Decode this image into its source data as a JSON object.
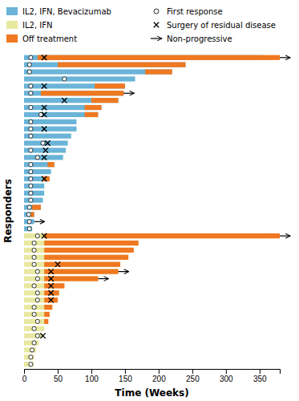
{
  "chart_data": {
    "type": "bar",
    "orientation": "horizontal",
    "xlabel": "Time (Weeks)",
    "ylabel": "Responders",
    "categories": [
      null,
      null,
      null,
      null,
      null,
      null,
      null,
      null,
      null,
      null,
      null,
      null,
      null,
      null,
      null,
      null,
      null,
      null,
      null,
      null,
      null,
      null,
      null,
      null,
      null,
      null,
      null,
      null,
      null,
      null,
      null,
      null,
      null,
      null,
      null,
      null,
      null,
      null,
      null,
      null,
      null,
      null,
      null,
      null
    ],
    "xlim": [
      0,
      380
    ],
    "xticks": [
      0,
      50,
      100,
      150,
      200,
      250,
      300,
      350
    ],
    "tick_labels": "x",
    "grid": false,
    "legend": "top",
    "series": [
      {
        "name": "IL2, IFN, Bevacizumab",
        "color": "#6ab4d8",
        "type": "bar",
        "values": [
          355,
          240,
          220,
          165,
          150,
          148,
          140,
          115,
          110,
          78,
          78,
          70,
          65,
          62,
          58,
          45,
          40,
          38,
          30,
          30,
          28,
          25,
          15,
          15,
          12,
          null,
          null,
          null,
          null,
          null,
          null,
          null,
          null,
          null,
          null,
          null,
          null,
          null,
          null,
          null,
          null,
          null,
          null,
          null
        ]
      },
      {
        "name": "IL2, IFN",
        "color": "#e8e8a0",
        "type": "bar",
        "values": [
          null,
          null,
          null,
          null,
          null,
          null,
          null,
          null,
          null,
          null,
          null,
          null,
          null,
          null,
          null,
          null,
          null,
          null,
          null,
          null,
          null,
          null,
          null,
          null,
          null,
          365,
          170,
          163,
          155,
          143,
          140,
          110,
          60,
          52,
          50,
          42,
          38,
          36,
          30,
          28,
          22,
          18,
          15,
          14
        ]
      },
      {
        "name": "Off treatment",
        "color": "#f07820",
        "type": "bar",
        "starts": [
          20,
          50,
          180,
          null,
          105,
          25,
          100,
          90,
          90,
          null,
          null,
          null,
          null,
          null,
          null,
          35,
          null,
          28,
          null,
          null,
          null,
          12,
          10,
          null,
          null,
          30,
          30,
          30,
          30,
          30,
          30,
          30,
          30,
          30,
          30,
          30,
          30,
          30,
          null,
          null,
          null,
          null,
          null,
          null
        ],
        "values": [
          380,
          240,
          220,
          null,
          150,
          148,
          140,
          115,
          110,
          null,
          null,
          null,
          null,
          null,
          null,
          45,
          null,
          38,
          null,
          null,
          null,
          25,
          15,
          null,
          null,
          380,
          170,
          163,
          155,
          143,
          140,
          110,
          60,
          52,
          50,
          42,
          38,
          36,
          null,
          null,
          null,
          null,
          null,
          null
        ]
      },
      {
        "name": "First response",
        "type": "scatter",
        "marker": "circle",
        "values": [
          10,
          8,
          8,
          60,
          10,
          10,
          null,
          10,
          25,
          10,
          10,
          10,
          28,
          10,
          20,
          10,
          10,
          10,
          10,
          10,
          10,
          8,
          7,
          8,
          8,
          20,
          15,
          15,
          15,
          15,
          20,
          20,
          15,
          20,
          20,
          15,
          15,
          20,
          15,
          20,
          15,
          12,
          10,
          10
        ]
      },
      {
        "name": "Surgery of residual disease",
        "type": "scatter",
        "marker": "x",
        "values": [
          30,
          null,
          null,
          null,
          30,
          null,
          60,
          30,
          30,
          null,
          30,
          null,
          35,
          32,
          30,
          null,
          null,
          30,
          null,
          null,
          null,
          null,
          null,
          null,
          null,
          30,
          null,
          null,
          null,
          50,
          40,
          40,
          40,
          40,
          40,
          null,
          null,
          null,
          null,
          28,
          null,
          null,
          null,
          null
        ]
      },
      {
        "name": "Non-progressive",
        "type": "arrow",
        "values": [
          380,
          null,
          null,
          null,
          null,
          148,
          null,
          null,
          null,
          null,
          null,
          null,
          null,
          null,
          null,
          null,
          null,
          null,
          null,
          null,
          null,
          null,
          null,
          15,
          null,
          380,
          null,
          null,
          null,
          null,
          140,
          110,
          null,
          null,
          null,
          null,
          null,
          null,
          null,
          null,
          null,
          null,
          null,
          null
        ]
      }
    ]
  }
}
